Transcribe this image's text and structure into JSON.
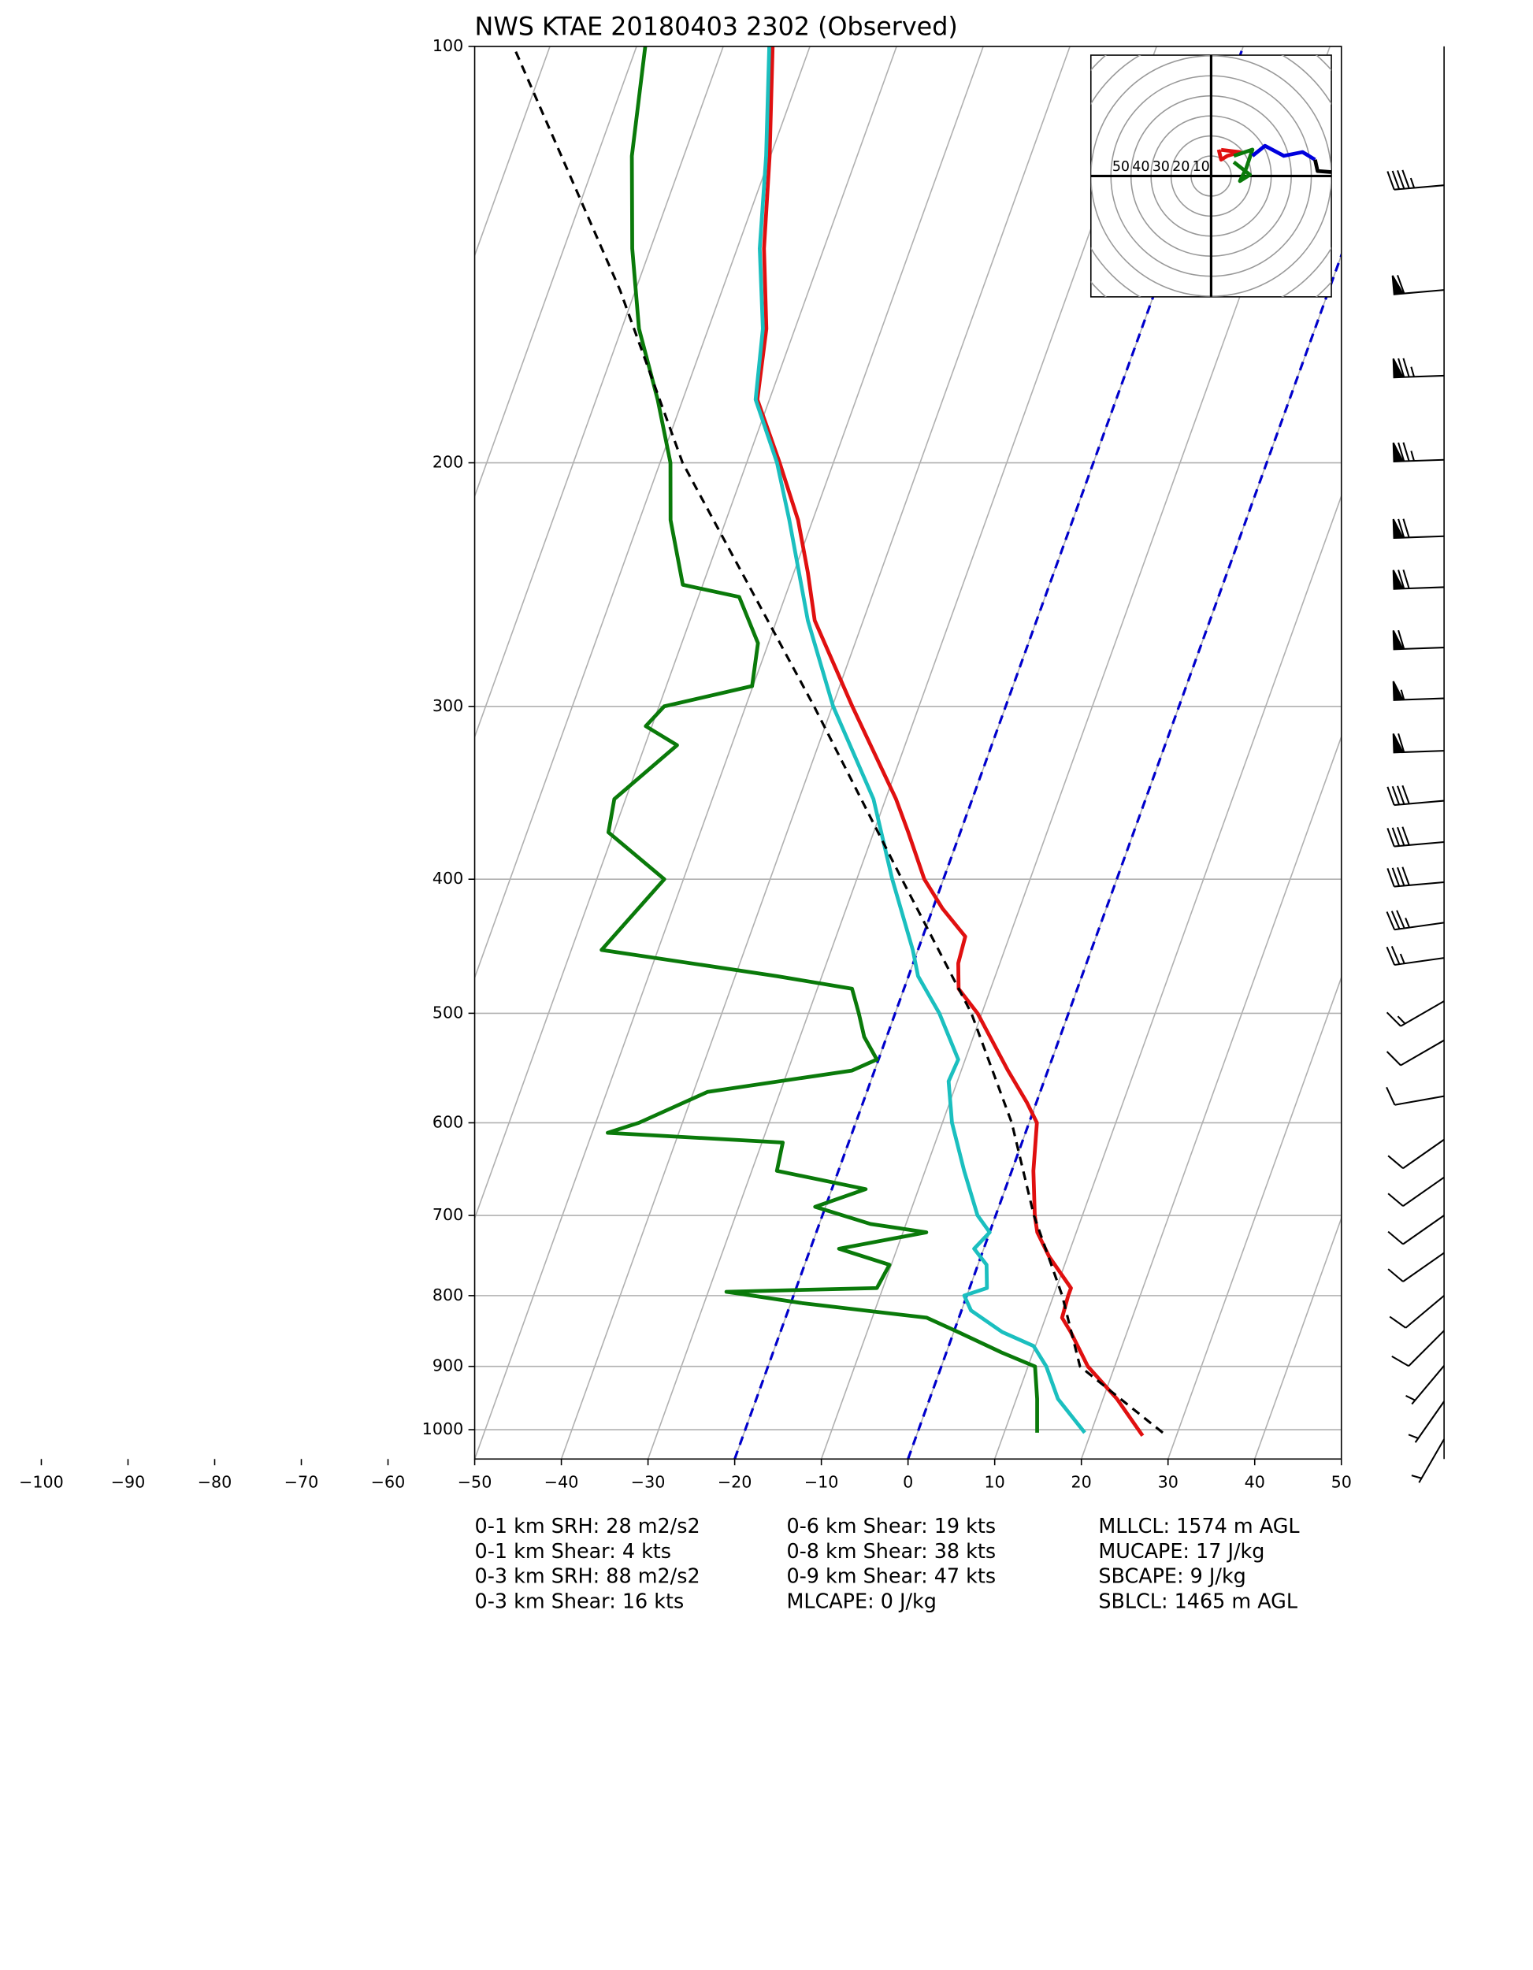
{
  "chart_data": {
    "type": "skewt",
    "title": "NWS KTAE 20180403 2302   (Observed)",
    "xlim": [
      -50,
      50
    ],
    "ylim": [
      1050,
      100
    ],
    "log_y": true,
    "grid": true,
    "xticks": [
      {
        "value": -100,
        "label": "−100"
      },
      {
        "value": -90,
        "label": "−90"
      },
      {
        "value": -80,
        "label": "−80"
      },
      {
        "value": -70,
        "label": "−70"
      },
      {
        "value": -60,
        "label": "−60"
      },
      {
        "value": -50,
        "label": "−50"
      },
      {
        "value": -40,
        "label": "−40"
      },
      {
        "value": -30,
        "label": "−30"
      },
      {
        "value": -20,
        "label": "−20"
      },
      {
        "value": -10,
        "label": "−10"
      },
      0,
      10,
      20,
      30,
      40,
      50
    ],
    "yticks": [
      100,
      200,
      300,
      400,
      500,
      600,
      700,
      800,
      900,
      1000
    ],
    "highlight_isotherms": [
      -20,
      0
    ],
    "highlight_color": "#0000cc",
    "series": [
      {
        "color": "#e01010",
        "dash": false,
        "pressure": [
          1010,
          950,
          900,
          850,
          830,
          800,
          790,
          750,
          720,
          700,
          650,
          600,
          580,
          550,
          500,
          480,
          460,
          440,
          420,
          400,
          370,
          350,
          300,
          260,
          240,
          220,
          200,
          180,
          160,
          140,
          120,
          100
        ],
        "values": [
          26.1,
          21.6,
          16.9,
          13.5,
          11.9,
          11.7,
          11.7,
          7.9,
          5.5,
          4.5,
          2.5,
          0.9,
          -1.1,
          -4.6,
          -10.5,
          -13.7,
          -14.8,
          -15.1,
          -18.9,
          -22.2,
          -26,
          -28.8,
          -37.7,
          -45.6,
          -48.4,
          -51.7,
          -56.2,
          -61.4,
          -63.3,
          -66.9,
          -70.1,
          -74.3
        ]
      },
      {
        "color": "#1bbfbf",
        "dash": false,
        "pressure": [
          1005,
          950,
          900,
          870,
          850,
          820,
          800,
          790,
          760,
          740,
          720,
          700,
          650,
          600,
          560,
          540,
          500,
          470,
          450,
          400,
          350,
          300,
          260,
          220,
          200,
          180,
          160,
          140,
          120,
          100
        ],
        "values": [
          19.3,
          14.8,
          12.1,
          9.8,
          5.6,
          1.1,
          -0.3,
          2,
          1,
          -1.1,
          0,
          -2.1,
          -5.5,
          -8.9,
          -11,
          -10.8,
          -14.9,
          -18.9,
          -20.6,
          -25.9,
          -31.4,
          -39.9,
          -46.4,
          -52.7,
          -56.5,
          -61.6,
          -63.7,
          -67.4,
          -70.5,
          -74.7
        ]
      },
      {
        "color": "#0a7a0a",
        "dash": false,
        "pressure": [
          1005,
          950,
          900,
          880,
          850,
          830,
          810,
          800,
          795,
          790,
          760,
          740,
          720,
          710,
          690,
          670,
          650,
          620,
          610,
          600,
          570,
          550,
          540,
          520,
          500,
          480,
          470,
          450,
          400,
          370,
          350,
          320,
          310,
          300,
          290,
          270,
          250,
          245,
          220,
          200,
          180,
          160,
          140,
          120,
          100
        ],
        "values": [
          13.8,
          12.4,
          10.8,
          6.5,
          0.5,
          -3.7,
          -18.7,
          -24.8,
          -27.9,
          -10.7,
          -10.2,
          -16.7,
          -7.3,
          -14.1,
          -21.2,
          -16.1,
          -27.1,
          -27.6,
          -48.2,
          -45,
          -38.4,
          -22.6,
          -20.2,
          -22.6,
          -24.2,
          -26,
          -35.2,
          -56.5,
          -52.2,
          -60.6,
          -61.3,
          -56.3,
          -60.7,
          -59.4,
          -50.1,
          -51.2,
          -55.3,
          -62.3,
          -66.4,
          -68.8,
          -72.9,
          -78,
          -82.1,
          -86,
          -89
        ]
      },
      {
        "color": "#000000",
        "dash": true,
        "pressure": [
          1005,
          900,
          800,
          700,
          600,
          500,
          400,
          300,
          200,
          150,
          100
        ],
        "values": [
          28.3,
          16,
          11,
          4.4,
          -2,
          -11.2,
          -24.8,
          -42.1,
          -67.4,
          -81.8,
          -104.2
        ]
      }
    ],
    "wind_barbs": {
      "pressure": [
        126,
        150,
        173,
        199,
        226,
        246,
        272,
        296,
        323,
        351,
        376,
        402,
        430,
        456,
        490,
        523,
        574,
        617,
        657,
        700,
        745,
        800,
        848,
        899,
        954,
        1016
      ],
      "speed": [
        45,
        60,
        75,
        75,
        70,
        70,
        60,
        55,
        60,
        40,
        40,
        40,
        35,
        25,
        15,
        10,
        10,
        10,
        10,
        10,
        10,
        10,
        10,
        5,
        5,
        5
      ],
      "direction": [
        265,
        265,
        268,
        268,
        268,
        268,
        268,
        268,
        268,
        265,
        265,
        265,
        262,
        262,
        240,
        240,
        260,
        235,
        235,
        235,
        235,
        230,
        225,
        220,
        215,
        210
      ]
    },
    "hodograph": {
      "xlim": [
        -60,
        60
      ],
      "ylim": [
        -60,
        60
      ],
      "rings": [
        50,
        40,
        30,
        20,
        10
      ],
      "segments": [
        {
          "color": "#e01010",
          "u": [
            5,
            14.4,
            8.1,
            5,
            3.8
          ],
          "v": [
            13,
            11.9,
            10,
            8.1,
            13.1
          ]
        },
        {
          "color": "#0a7a0a",
          "u": [
            11.3,
            20.6,
            17.5,
            14.4,
            19.4,
            11.3
          ],
          "v": [
            10,
            13.1,
            3.8,
            -2.5,
            0.6,
            6.9
          ]
        },
        {
          "color": "#0000dd",
          "u": [
            20.6,
            26.9,
            36.3,
            45.6,
            51.9
          ],
          "v": [
            10,
            15,
            10,
            11.9,
            8.1
          ]
        },
        {
          "color": "#000000",
          "u": [
            51.9,
            53.1,
            60
          ],
          "v": [
            8.1,
            2.5,
            1.9
          ]
        }
      ]
    },
    "annotations": [
      "0-1 km SRH: 28 m2/s2",
      "0-1 km Shear: 4 kts",
      "0-3 km SRH: 88 m2/s2",
      "0-3 km Shear: 16 kts",
      "0-6 km Shear: 19 kts",
      "0-8 km Shear: 38 kts",
      "0-9 km Shear: 47 kts",
      "MLCAPE: 0 J/kg",
      "MLLCL: 1574 m AGL",
      "MUCAPE: 17 J/kg",
      "SBCAPE: 9 J/kg",
      "SBLCL: 1465 m AGL"
    ]
  }
}
